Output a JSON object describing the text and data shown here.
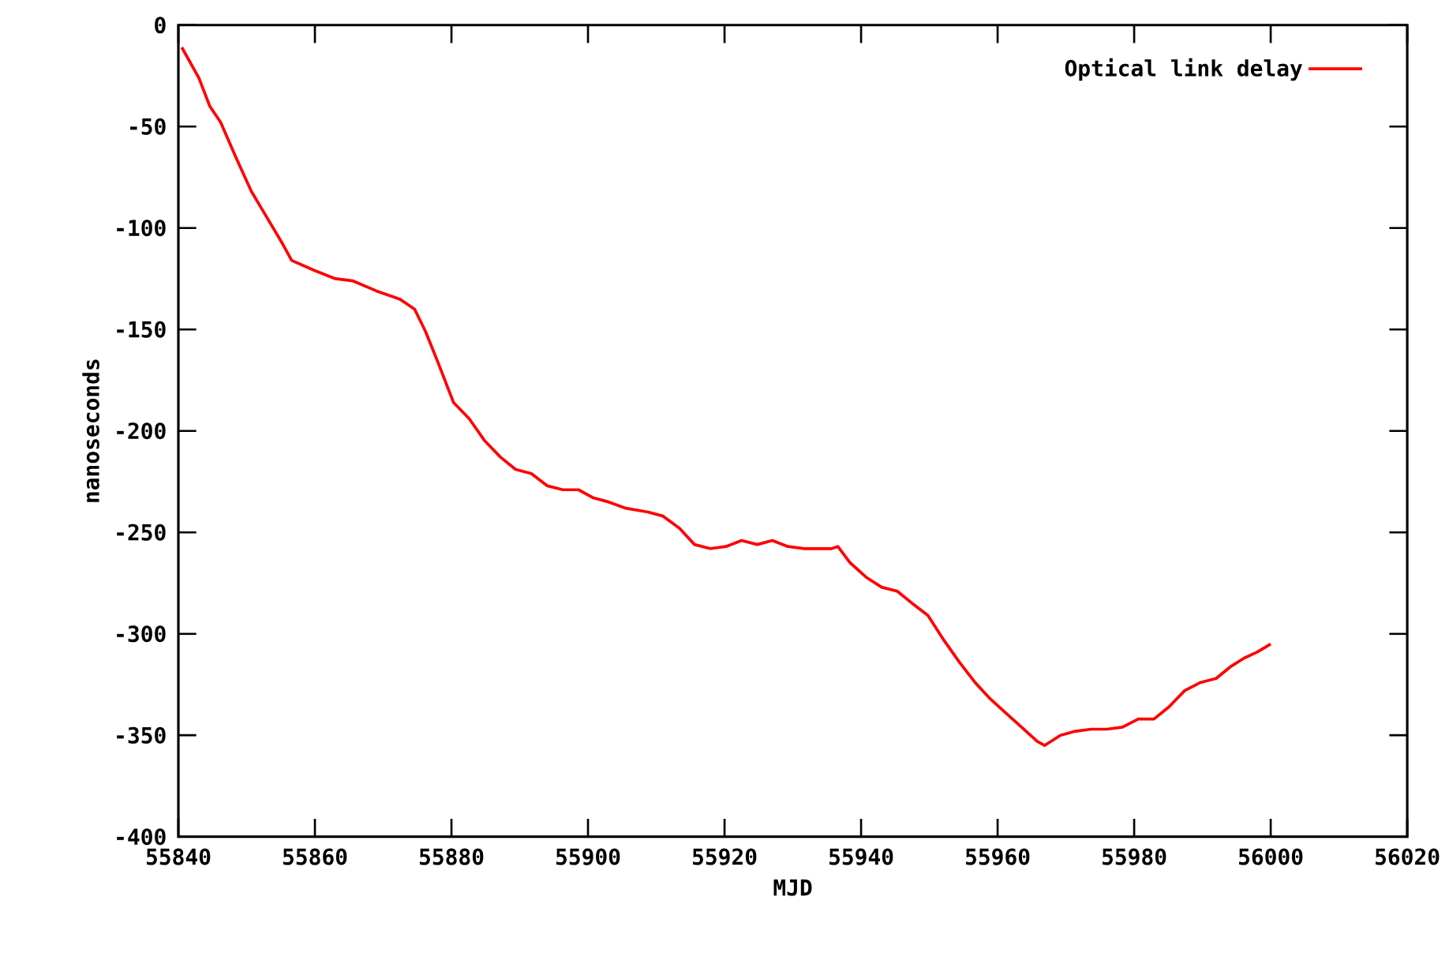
{
  "chart_data": {
    "type": "line",
    "xlabel": "MJD",
    "ylabel": "nanoseconds",
    "xlim": [
      55840,
      56020
    ],
    "ylim": [
      -400,
      0
    ],
    "xticks": [
      55840,
      55860,
      55880,
      55900,
      55920,
      55940,
      55960,
      55980,
      56000,
      56020
    ],
    "yticks": [
      -400,
      -350,
      -300,
      -250,
      -200,
      -150,
      -100,
      -50,
      0
    ],
    "legend": "top right",
    "grid": false,
    "series": [
      {
        "name": "Optical link delay",
        "color": "#ff0000",
        "x": [
          55840.5,
          55843,
          55844.6,
          55846.2,
          55848.4,
          55850.7,
          55853,
          55855.3,
          55856.6,
          55860,
          55863,
          55865.5,
          55869,
          55872.4,
          55874.6,
          55876.2,
          55878,
          55880.3,
          55882.6,
          55884.9,
          55887.2,
          55889.4,
          55891.7,
          55894,
          55896.3,
          55898.6,
          55900.8,
          55903,
          55905.4,
          55908.8,
          55911,
          55913.4,
          55915.6,
          55917.9,
          55920.2,
          55922.5,
          55924.8,
          55927,
          55929.3,
          55931.6,
          55933.9,
          55935.7,
          55936.6,
          55938.4,
          55940.7,
          55943,
          55945.3,
          55947.5,
          55949.8,
          55952.1,
          55954.4,
          55956.7,
          55958.9,
          55961.2,
          55963.5,
          55965.8,
          55966.9,
          55969.2,
          55971.4,
          55973.7,
          55976,
          55978.3,
          55980.6,
          55982.9,
          55985.1,
          55987.4,
          55989.7,
          55992,
          55994.2,
          55996.1,
          55998,
          56000
        ],
        "values": [
          -11,
          -26,
          -40,
          -48,
          -65,
          -82,
          -95,
          -108,
          -116,
          -121,
          -125,
          -126,
          -131,
          -135,
          -140,
          -151,
          -166,
          -186,
          -194,
          -205,
          -213,
          -219,
          -221,
          -227,
          -229,
          -229,
          -233,
          -235,
          -238,
          -240,
          -242,
          -248,
          -256,
          -258,
          -257,
          -254,
          -256,
          -254,
          -257,
          -258,
          -258,
          -258,
          -257,
          -265,
          -272,
          -277,
          -279,
          -285,
          -291,
          -303,
          -314,
          -324,
          -332,
          -339,
          -346,
          -353,
          -355,
          -350,
          -348,
          -347,
          -347,
          -346,
          -342,
          -342,
          -336,
          -328,
          -324,
          -322,
          -316,
          -312,
          -309,
          -305
        ]
      }
    ]
  }
}
